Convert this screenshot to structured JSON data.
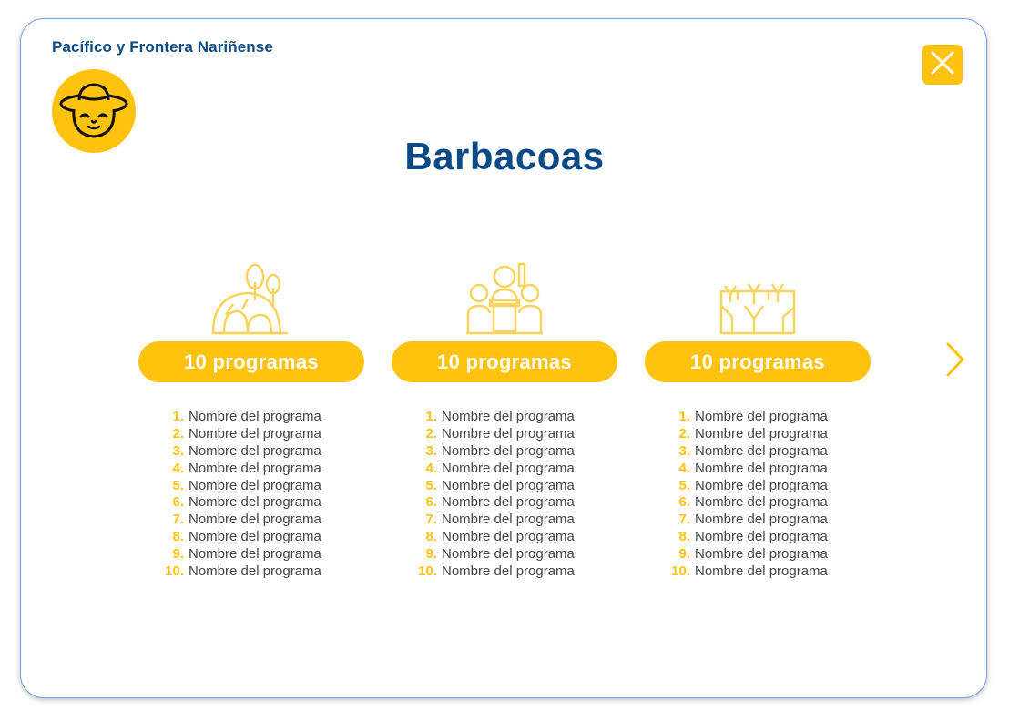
{
  "colors": {
    "primary_blue": "#0b4a85",
    "accent_yellow": "#ffc20e",
    "border": "#7b9cf0",
    "text": "#444444"
  },
  "header": {
    "region_title": "Pacífico y Frontera Nariñense",
    "avatar_icon": "farmer-hat-face-icon",
    "close_icon": "close-icon"
  },
  "page": {
    "title": "Barbacoas"
  },
  "columns": [
    {
      "icon": "tree-house-icon",
      "count_label": "10 programas",
      "programs": [
        {
          "num": "1.",
          "name": "Nombre del programa"
        },
        {
          "num": "2.",
          "name": "Nombre del programa"
        },
        {
          "num": "3.",
          "name": "Nombre del programa"
        },
        {
          "num": "4.",
          "name": "Nombre del programa"
        },
        {
          "num": "5.",
          "name": "Nombre del programa"
        },
        {
          "num": "6.",
          "name": "Nombre del programa"
        },
        {
          "num": "7.",
          "name": "Nombre del programa"
        },
        {
          "num": "8.",
          "name": "Nombre del programa"
        },
        {
          "num": "9.",
          "name": "Nombre del programa"
        },
        {
          "num": "10.",
          "name": "Nombre del programa"
        }
      ]
    },
    {
      "icon": "teacher-classroom-icon",
      "count_label": "10 programas",
      "programs": [
        {
          "num": "1.",
          "name": "Nombre del programa"
        },
        {
          "num": "2.",
          "name": "Nombre del programa"
        },
        {
          "num": "3.",
          "name": "Nombre del programa"
        },
        {
          "num": "4.",
          "name": "Nombre del programa"
        },
        {
          "num": "5.",
          "name": "Nombre del programa"
        },
        {
          "num": "6.",
          "name": "Nombre del programa"
        },
        {
          "num": "7.",
          "name": "Nombre del programa"
        },
        {
          "num": "8.",
          "name": "Nombre del programa"
        },
        {
          "num": "9.",
          "name": "Nombre del programa"
        },
        {
          "num": "10.",
          "name": "Nombre del programa"
        }
      ]
    },
    {
      "icon": "crop-field-icon",
      "count_label": "10 programas",
      "programs": [
        {
          "num": "1.",
          "name": "Nombre del programa"
        },
        {
          "num": "2.",
          "name": "Nombre del programa"
        },
        {
          "num": "3.",
          "name": "Nombre del programa"
        },
        {
          "num": "4.",
          "name": "Nombre del programa"
        },
        {
          "num": "5.",
          "name": "Nombre del programa"
        },
        {
          "num": "6.",
          "name": "Nombre del programa"
        },
        {
          "num": "7.",
          "name": "Nombre del programa"
        },
        {
          "num": "8.",
          "name": "Nombre del programa"
        },
        {
          "num": "9.",
          "name": "Nombre del programa"
        },
        {
          "num": "10.",
          "name": "Nombre del programa"
        }
      ]
    }
  ],
  "navigation": {
    "next_icon": "chevron-right-icon"
  }
}
